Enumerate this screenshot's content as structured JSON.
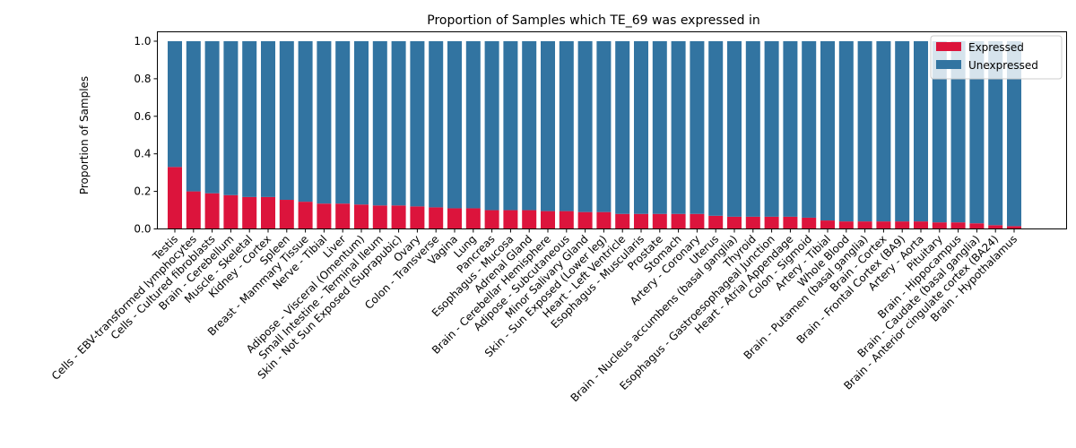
{
  "chart_data": {
    "type": "bar",
    "stacked": true,
    "title": "Proportion of Samples which TE_69 was expressed in",
    "xlabel": "",
    "ylabel": "Proportion of Samples",
    "ylim": [
      0,
      1.05
    ],
    "yticks": [
      "0.0",
      "0.2",
      "0.4",
      "0.6",
      "0.8",
      "1.0"
    ],
    "grid": false,
    "legend_position": "top-right",
    "categories": [
      "Testis",
      "Cells - EBV-transformed lymphocytes",
      "Cells - Cultured fibroblasts",
      "Brain - Cerebellum",
      "Muscle - Skeletal",
      "Kidney - Cortex",
      "Spleen",
      "Breast - Mammary Tissue",
      "Nerve - Tibial",
      "Liver",
      "Adipose - Visceral (Omentum)",
      "Small Intestine - Terminal Ileum",
      "Skin - Not Sun Exposed (Suprapubic)",
      "Ovary",
      "Colon - Transverse",
      "Vagina",
      "Lung",
      "Pancreas",
      "Esophagus - Mucosa",
      "Adrenal Gland",
      "Brain - Cerebellar Hemisphere",
      "Adipose - Subcutaneous",
      "Minor Salivary Gland",
      "Skin - Sun Exposed (Lower leg)",
      "Heart - Left Ventricle",
      "Esophagus - Muscularis",
      "Prostate",
      "Stomach",
      "Artery - Coronary",
      "Uterus",
      "Brain - Nucleus accumbens (basal ganglia)",
      "Thyroid",
      "Esophagus - Gastroesophageal Junction",
      "Heart - Atrial Appendage",
      "Colon - Sigmoid",
      "Artery - Tibial",
      "Whole Blood",
      "Brain - Putamen (basal ganglia)",
      "Brain - Cortex",
      "Brain - Frontal Cortex (BA9)",
      "Artery - Aorta",
      "Pituitary",
      "Brain - Hippocampus",
      "Brain - Caudate (basal ganglia)",
      "Brain - Anterior cingulate cortex (BA24)",
      "Brain - Hypothalamus"
    ],
    "series": [
      {
        "name": "Expressed",
        "color": "#dc143c",
        "values": [
          0.33,
          0.2,
          0.19,
          0.18,
          0.17,
          0.17,
          0.155,
          0.145,
          0.135,
          0.135,
          0.13,
          0.125,
          0.125,
          0.12,
          0.115,
          0.11,
          0.11,
          0.1,
          0.1,
          0.1,
          0.095,
          0.095,
          0.09,
          0.09,
          0.08,
          0.08,
          0.08,
          0.08,
          0.08,
          0.07,
          0.065,
          0.065,
          0.065,
          0.065,
          0.06,
          0.045,
          0.04,
          0.04,
          0.04,
          0.04,
          0.04,
          0.035,
          0.035,
          0.03,
          0.02,
          0.015
        ]
      },
      {
        "name": "Unexpressed",
        "color": "#3274a1",
        "values": [
          0.67,
          0.8,
          0.81,
          0.82,
          0.83,
          0.83,
          0.845,
          0.855,
          0.865,
          0.865,
          0.87,
          0.875,
          0.875,
          0.88,
          0.885,
          0.89,
          0.89,
          0.9,
          0.9,
          0.9,
          0.905,
          0.905,
          0.91,
          0.91,
          0.92,
          0.92,
          0.92,
          0.92,
          0.92,
          0.93,
          0.935,
          0.935,
          0.935,
          0.935,
          0.94,
          0.955,
          0.96,
          0.96,
          0.96,
          0.96,
          0.96,
          0.965,
          0.965,
          0.97,
          0.98,
          0.985
        ]
      }
    ]
  }
}
